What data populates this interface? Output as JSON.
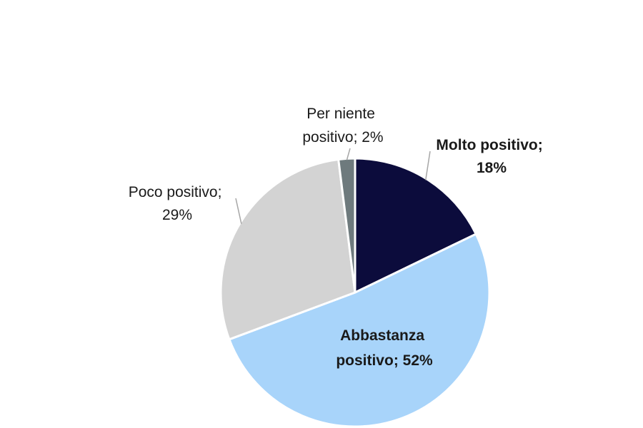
{
  "chart_data": {
    "type": "pie",
    "start_angle_deg": 0,
    "direction": "clockwise",
    "slices": [
      {
        "name": "Molto positivo",
        "value": 18,
        "color": "#0c0c3c",
        "label": [
          "Molto positivo;",
          "18%"
        ],
        "bold": true
      },
      {
        "name": "Abbastanza positivo",
        "value": 52,
        "color": "#a8d4fa",
        "label": [
          "Abbastanza",
          "positivo; 52%"
        ],
        "bold": true
      },
      {
        "name": "Poco positivo",
        "value": 29,
        "color": "#d3d3d3",
        "label": [
          "Poco positivo;",
          "29%"
        ],
        "bold": false
      },
      {
        "name": "Per niente positivo",
        "value": 2,
        "color": "#6e7a7d",
        "label": [
          "Per niente",
          "positivo; 2%"
        ],
        "bold": false
      }
    ],
    "legend": "none",
    "separator_color": "#ffffff"
  }
}
